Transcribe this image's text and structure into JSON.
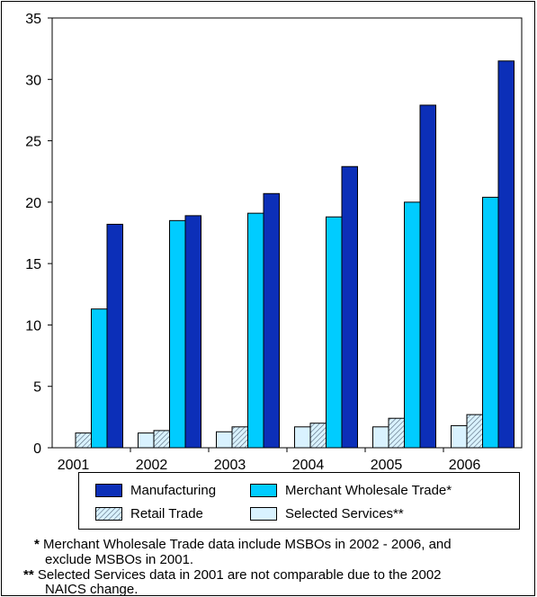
{
  "chart_data": {
    "type": "bar",
    "categories": [
      "2001",
      "2002",
      "2003",
      "2004",
      "2005",
      "2006"
    ],
    "ylim": [
      0,
      35
    ],
    "yticks": [
      0,
      5,
      10,
      15,
      20,
      25,
      30,
      35
    ],
    "legend_position": "bottom",
    "series": [
      {
        "name": "Selected Services**",
        "color": "#d9f2ff",
        "pattern": "solid",
        "values": [
          null,
          1.2,
          1.3,
          1.7,
          1.7,
          1.8
        ]
      },
      {
        "name": "Retail Trade",
        "color": "#d9f2ff",
        "pattern": "hatch",
        "values": [
          1.2,
          1.4,
          1.7,
          2.0,
          2.4,
          2.7
        ]
      },
      {
        "name": "Merchant Wholesale Trade*",
        "color": "#00ccff",
        "pattern": "solid",
        "values": [
          11.3,
          18.5,
          19.1,
          18.8,
          20.0,
          20.4
        ]
      },
      {
        "name": "Manufacturing",
        "color": "#0c2fb8",
        "pattern": "solid",
        "values": [
          18.2,
          18.9,
          20.7,
          22.9,
          27.9,
          31.5
        ]
      }
    ]
  },
  "notes": [
    {
      "mark": "*",
      "text": "Merchant Wholesale Trade data include MSBOs in 2002 - 2006, and",
      "cont": "exclude MSBOs in 2001."
    },
    {
      "mark": "**",
      "text": "Selected Services data in 2001 are not comparable due to the 2002",
      "cont": "NAICS change."
    }
  ]
}
